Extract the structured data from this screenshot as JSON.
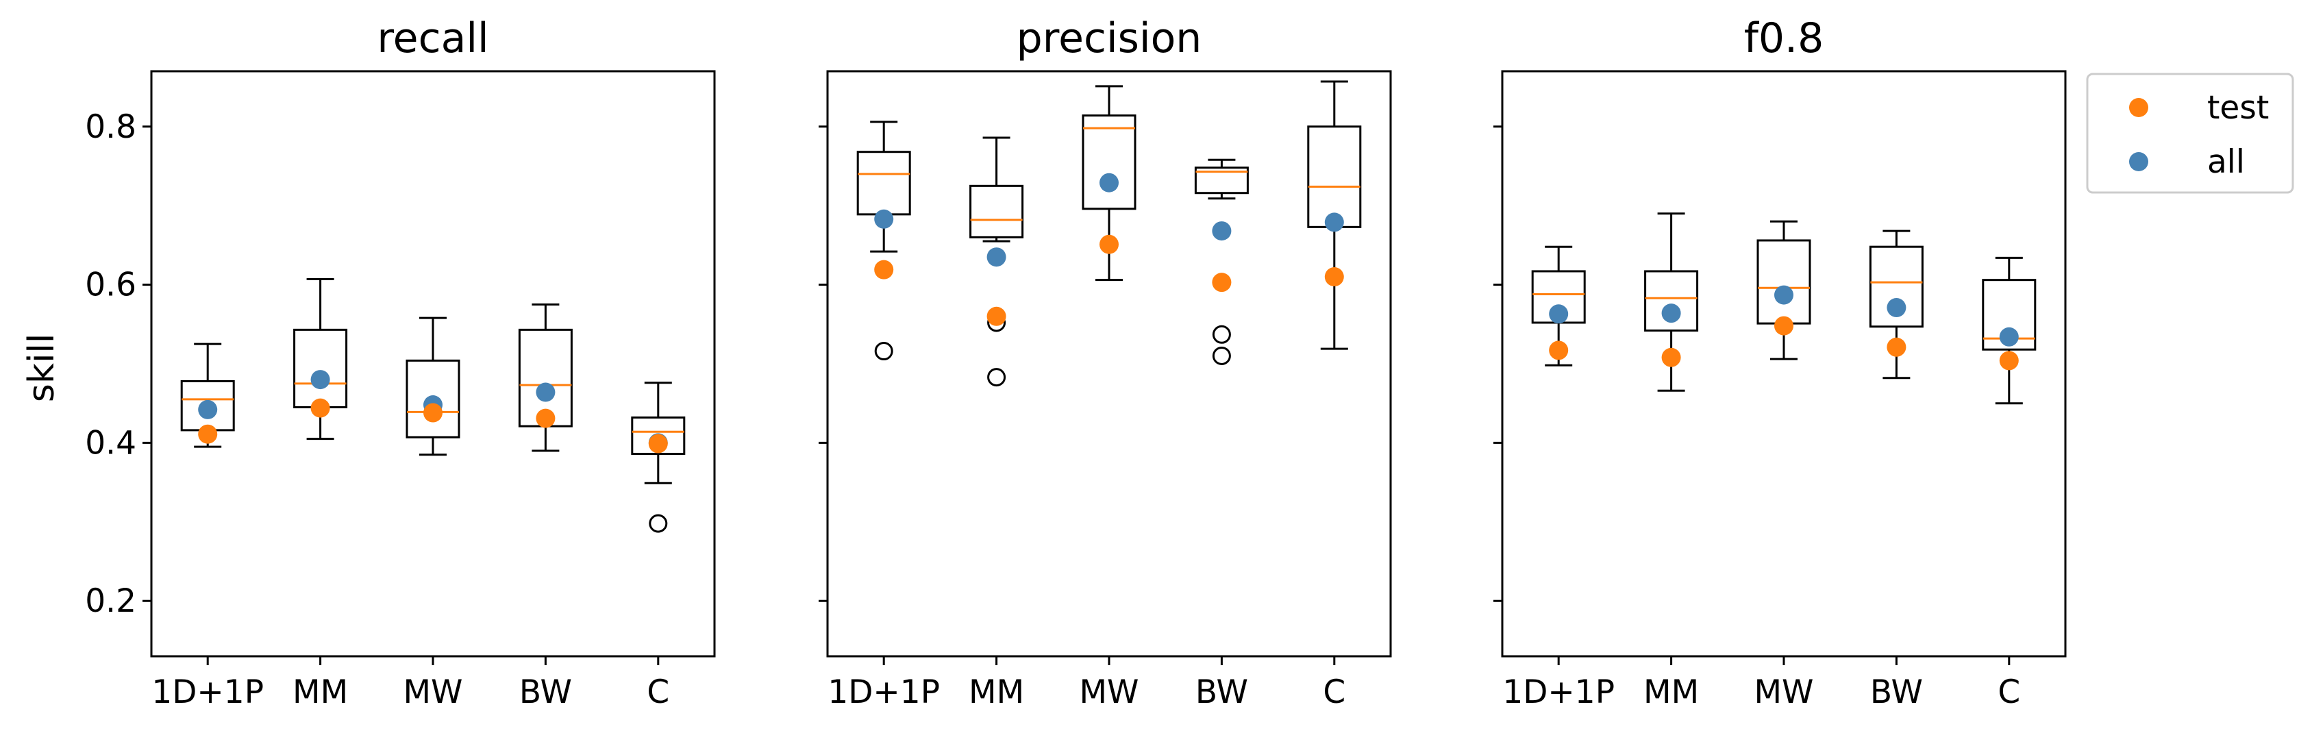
{
  "colors": {
    "test": "#ff7f0e",
    "all": "#4682b4",
    "median": "#ff7f0e",
    "box": "#000000"
  },
  "legend": {
    "placement": "outside-right-top",
    "items": [
      {
        "label": "test",
        "color": "#ff7f0e"
      },
      {
        "label": "all",
        "color": "#4682b4"
      }
    ]
  },
  "chart_data": {
    "type": "box",
    "ylabel": "skill",
    "ylim": [
      0.13,
      0.87
    ],
    "yticks": [
      "0.2",
      "0.4",
      "0.6",
      "0.8"
    ],
    "categories": [
      "1D+1P",
      "MM",
      "MW",
      "BW",
      "C"
    ],
    "panels": [
      {
        "title": "recall",
        "boxes": [
          {
            "whislo": 0.395,
            "q1": 0.416,
            "med": 0.455,
            "q3": 0.478,
            "whishi": 0.525,
            "fliers": []
          },
          {
            "whislo": 0.405,
            "q1": 0.445,
            "med": 0.475,
            "q3": 0.543,
            "whishi": 0.607,
            "fliers": []
          },
          {
            "whislo": 0.385,
            "q1": 0.407,
            "med": 0.439,
            "q3": 0.504,
            "whishi": 0.558,
            "fliers": []
          },
          {
            "whislo": 0.39,
            "q1": 0.421,
            "med": 0.473,
            "q3": 0.543,
            "whishi": 0.575,
            "fliers": []
          },
          {
            "whislo": 0.349,
            "q1": 0.386,
            "med": 0.414,
            "q3": 0.432,
            "whishi": 0.476,
            "fliers": [
              0.298
            ]
          }
        ],
        "test": [
          0.411,
          0.444,
          0.438,
          0.431,
          0.399
        ],
        "all": [
          0.442,
          0.48,
          0.448,
          0.464,
          0.4
        ]
      },
      {
        "title": "precision",
        "boxes": [
          {
            "whislo": 0.642,
            "q1": 0.689,
            "med": 0.74,
            "q3": 0.768,
            "whishi": 0.806,
            "fliers": [
              0.516
            ]
          },
          {
            "whislo": 0.655,
            "q1": 0.66,
            "med": 0.682,
            "q3": 0.725,
            "whishi": 0.786,
            "fliers": [
              0.552,
              0.483
            ]
          },
          {
            "whislo": 0.606,
            "q1": 0.696,
            "med": 0.798,
            "q3": 0.814,
            "whishi": 0.851,
            "fliers": []
          },
          {
            "whislo": 0.709,
            "q1": 0.716,
            "med": 0.743,
            "q3": 0.748,
            "whishi": 0.758,
            "fliers": [
              0.537,
              0.51
            ]
          },
          {
            "whislo": 0.519,
            "q1": 0.673,
            "med": 0.724,
            "q3": 0.8,
            "whishi": 0.857,
            "fliers": []
          }
        ],
        "test": [
          0.619,
          0.56,
          0.651,
          0.603,
          0.61
        ],
        "all": [
          0.683,
          0.635,
          0.729,
          0.668,
          0.679
        ]
      },
      {
        "title": "f0.8",
        "boxes": [
          {
            "whislo": 0.498,
            "q1": 0.552,
            "med": 0.588,
            "q3": 0.617,
            "whishi": 0.648,
            "fliers": []
          },
          {
            "whislo": 0.466,
            "q1": 0.542,
            "med": 0.583,
            "q3": 0.617,
            "whishi": 0.69,
            "fliers": []
          },
          {
            "whislo": 0.506,
            "q1": 0.551,
            "med": 0.596,
            "q3": 0.656,
            "whishi": 0.68,
            "fliers": []
          },
          {
            "whislo": 0.482,
            "q1": 0.547,
            "med": 0.603,
            "q3": 0.648,
            "whishi": 0.668,
            "fliers": []
          },
          {
            "whislo": 0.45,
            "q1": 0.518,
            "med": 0.532,
            "q3": 0.606,
            "whishi": 0.634,
            "fliers": []
          }
        ],
        "test": [
          0.517,
          0.508,
          0.548,
          0.521,
          0.504
        ],
        "all": [
          0.563,
          0.564,
          0.587,
          0.571,
          0.534
        ]
      }
    ]
  }
}
